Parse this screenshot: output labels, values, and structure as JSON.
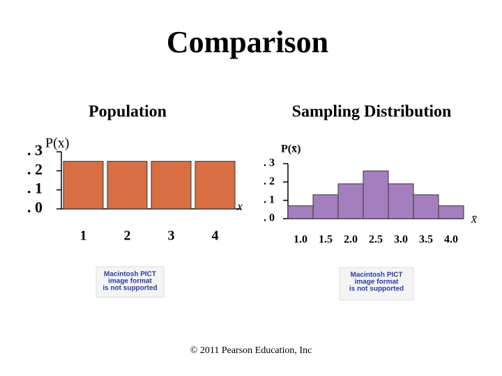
{
  "title": "Comparison",
  "chart_data": [
    {
      "type": "bar",
      "title": "Population",
      "y_label": "P(x)",
      "x_label": "x",
      "categories": [
        "1",
        "2",
        "3",
        "4"
      ],
      "values": [
        0.25,
        0.25,
        0.25,
        0.25
      ],
      "color": "#d86e42",
      "ylim": [
        0,
        0.3
      ],
      "yticks": [
        {
          "value": 0,
          "label": ". 0"
        },
        {
          "value": 0.1,
          "label": ". 1"
        },
        {
          "value": 0.2,
          "label": ". 2"
        },
        {
          "value": 0.3,
          "label": ". 3"
        }
      ],
      "grid": false
    },
    {
      "type": "bar",
      "title": "Sampling Distribution",
      "y_label": "P(x̄)",
      "x_label": "x̄",
      "categories": [
        "1.0",
        "1.5",
        "2.0",
        "2.5",
        "3.0",
        "3.5",
        "4.0"
      ],
      "values": [
        0.07,
        0.13,
        0.19,
        0.26,
        0.19,
        0.13,
        0.07
      ],
      "color": "#a47fbf",
      "ylim": [
        0,
        0.3
      ],
      "yticks": [
        {
          "value": 0,
          "label": ". 0"
        },
        {
          "value": 0.1,
          "label": ". 1"
        },
        {
          "value": 0.2,
          "label": ". 2"
        },
        {
          "value": 0.3,
          "label": ". 3"
        }
      ],
      "grid": false
    }
  ],
  "placeholders": [
    {
      "lines": [
        "Macintosh PICT",
        "image format",
        "is not supported"
      ]
    },
    {
      "lines": [
        "Macintosh PICT",
        "image format",
        "is not supported"
      ]
    }
  ],
  "footer": "© 2011 Pearson Education, Inc"
}
